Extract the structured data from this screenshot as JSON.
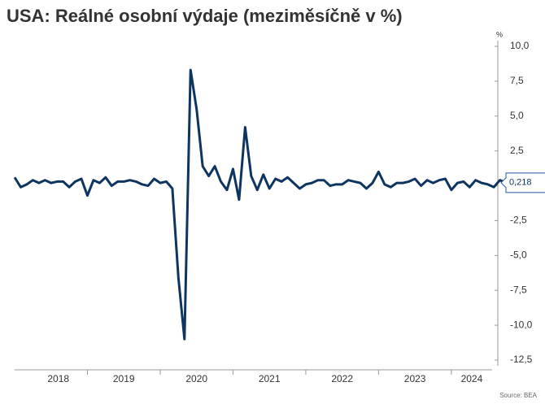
{
  "chart_data": {
    "type": "line",
    "title": "USA: Reálné osobní výdaje (meziměsíčně v %)",
    "y_unit": "%",
    "source": "Source: BEA",
    "years": [
      "2018",
      "2019",
      "2020",
      "2021",
      "2022",
      "2023",
      "2024"
    ],
    "series": [
      {
        "name": "Reálné osobní výdaje",
        "color": "#0d3560",
        "values": [
          0.6,
          -0.1,
          0.1,
          0.4,
          0.2,
          0.4,
          0.2,
          0.3,
          0.3,
          -0.1,
          0.3,
          0.5,
          -0.7,
          0.4,
          0.2,
          0.6,
          0,
          0.3,
          0.3,
          0.4,
          0.3,
          0.1,
          0,
          0.5,
          0.2,
          0.3,
          -0.2,
          -6.6,
          -11.0,
          8.3,
          5.5,
          1.4,
          0.7,
          1.4,
          0.3,
          -0.3,
          1.2,
          -1.0,
          4.2,
          0.7,
          -0.3,
          0.8,
          -0.2,
          0.5,
          0.3,
          0.6,
          0.2,
          -0.2,
          0.1,
          0.2,
          0.4,
          0.4,
          0,
          0.1,
          0.1,
          0.4,
          0.3,
          0.2,
          -0.2,
          0.2,
          1.0,
          0.1,
          -0.1,
          0.2,
          0.2,
          0.3,
          0.5,
          0,
          0.4,
          0.2,
          0.4,
          0.5,
          -0.3,
          0.2,
          0.3,
          -0.1,
          0.4,
          0.2,
          0.1,
          -0.1,
          0.4,
          0.218
        ]
      }
    ],
    "last_value_label": "0,218",
    "ylim": [
      -12.5,
      10
    ],
    "yticks": [
      {
        "value": 10,
        "label": "10,0"
      },
      {
        "value": 7.5,
        "label": "7,5"
      },
      {
        "value": 5,
        "label": "5,0"
      },
      {
        "value": 2.5,
        "label": "2,5"
      },
      0,
      {
        "value": -2.5,
        "label": "-2,5"
      },
      {
        "value": -5,
        "label": "-5,0"
      },
      {
        "value": -7.5,
        "label": "-7,5"
      },
      {
        "value": -10,
        "label": "-10,0"
      },
      {
        "value": -12.5,
        "label": "-12,5"
      }
    ],
    "grid": false
  }
}
